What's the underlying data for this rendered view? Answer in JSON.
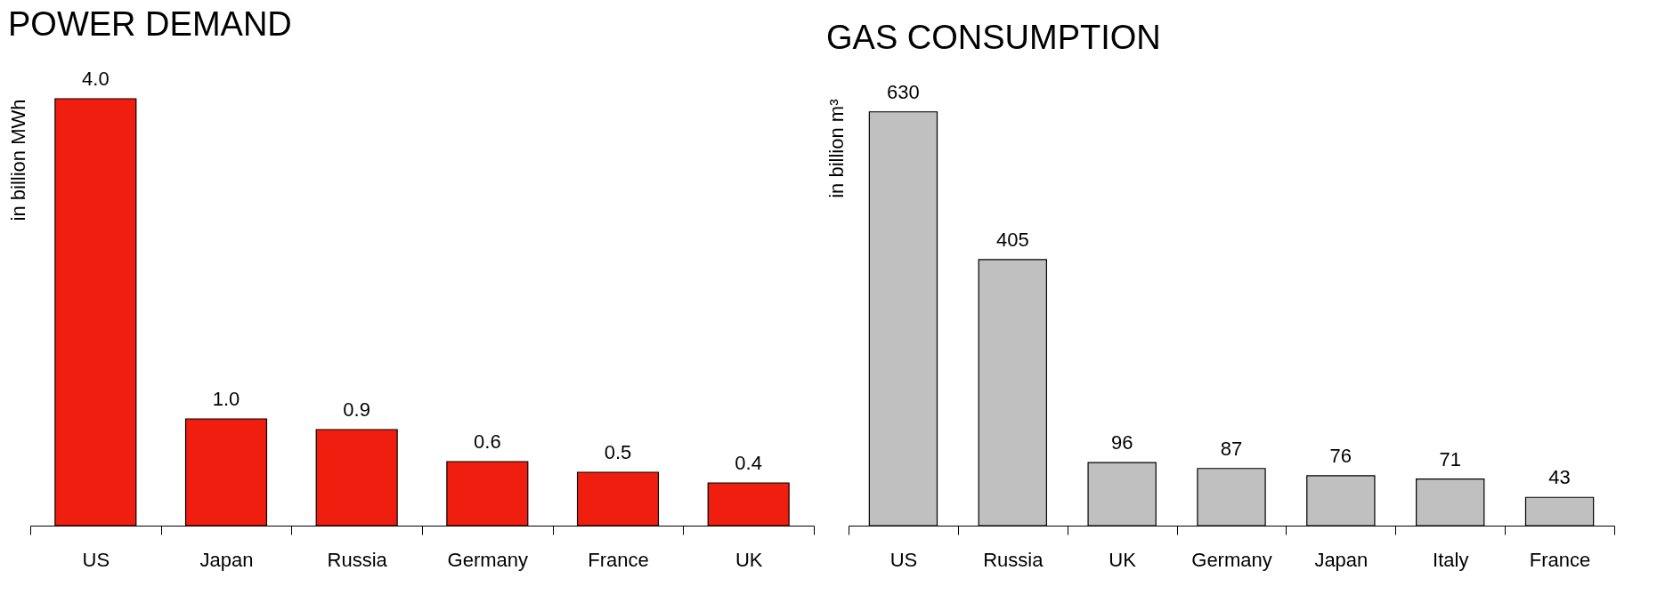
{
  "chart_data": [
    {
      "type": "bar",
      "title": "POWER DEMAND",
      "ylabel": "in billion MWh",
      "categories": [
        "US",
        "Japan",
        "Russia",
        "Germany",
        "France",
        "UK"
      ],
      "values": [
        4.0,
        1.0,
        0.9,
        0.6,
        0.5,
        0.4
      ],
      "value_labels": [
        "4.0",
        "1.0",
        "0.9",
        "0.6",
        "0.5",
        "0.4"
      ],
      "color": "#f01e0e",
      "tick_labels": "x"
    },
    {
      "type": "bar",
      "title": "GAS CONSUMPTION",
      "ylabel": "in billion m³",
      "categories": [
        "US",
        "Russia",
        "UK",
        "Germany",
        "Japan",
        "Italy",
        "France"
      ],
      "values": [
        630,
        405,
        96,
        87,
        76,
        71,
        43
      ],
      "color": "#c0c0c0",
      "data_labels": true,
      "tick_labels": "x"
    }
  ]
}
